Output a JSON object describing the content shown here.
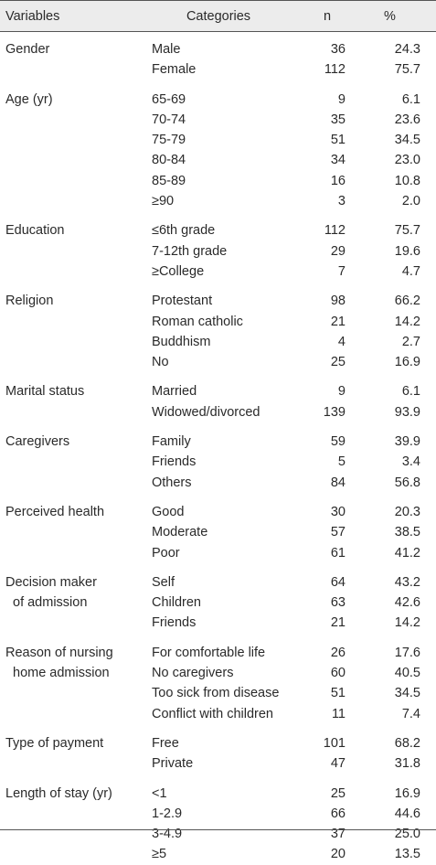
{
  "header": {
    "variables": "Variables",
    "categories": "Categories",
    "n": "n",
    "pct": "%"
  },
  "groups": [
    {
      "variable": [
        "Gender"
      ],
      "rows": [
        {
          "cat": "Male",
          "n": "36",
          "pct": "24.3"
        },
        {
          "cat": "Female",
          "n": "112",
          "pct": "75.7"
        }
      ]
    },
    {
      "variable": [
        "Age (yr)"
      ],
      "rows": [
        {
          "cat": "65-69",
          "n": "9",
          "pct": "6.1"
        },
        {
          "cat": "70-74",
          "n": "35",
          "pct": "23.6"
        },
        {
          "cat": "75-79",
          "n": "51",
          "pct": "34.5"
        },
        {
          "cat": "80-84",
          "n": "34",
          "pct": "23.0"
        },
        {
          "cat": "85-89",
          "n": "16",
          "pct": "10.8"
        },
        {
          "cat": "≥90",
          "n": "3",
          "pct": "2.0"
        }
      ]
    },
    {
      "variable": [
        "Education"
      ],
      "rows": [
        {
          "cat": "≤6th grade",
          "n": "112",
          "pct": "75.7"
        },
        {
          "cat": "7-12th grade",
          "n": "29",
          "pct": "19.6"
        },
        {
          "cat": "≥College",
          "n": "7",
          "pct": "4.7"
        }
      ]
    },
    {
      "variable": [
        "Religion"
      ],
      "rows": [
        {
          "cat": "Protestant",
          "n": "98",
          "pct": "66.2"
        },
        {
          "cat": "Roman catholic",
          "n": "21",
          "pct": "14.2"
        },
        {
          "cat": "Buddhism",
          "n": "4",
          "pct": "2.7"
        },
        {
          "cat": "No",
          "n": "25",
          "pct": "16.9"
        }
      ]
    },
    {
      "variable": [
        "Marital status"
      ],
      "rows": [
        {
          "cat": "Married",
          "n": "9",
          "pct": "6.1"
        },
        {
          "cat": "Widowed/divorced",
          "n": "139",
          "pct": "93.9"
        }
      ]
    },
    {
      "variable": [
        "Caregivers"
      ],
      "rows": [
        {
          "cat": "Family",
          "n": "59",
          "pct": "39.9"
        },
        {
          "cat": "Friends",
          "n": "5",
          "pct": "3.4"
        },
        {
          "cat": "Others",
          "n": "84",
          "pct": "56.8"
        }
      ]
    },
    {
      "variable": [
        "Perceived health"
      ],
      "rows": [
        {
          "cat": "Good",
          "n": "30",
          "pct": "20.3"
        },
        {
          "cat": "Moderate",
          "n": "57",
          "pct": "38.5"
        },
        {
          "cat": "Poor",
          "n": "61",
          "pct": "41.2"
        }
      ]
    },
    {
      "variable": [
        "Decision maker",
        "of admission"
      ],
      "rows": [
        {
          "cat": "Self",
          "n": "64",
          "pct": "43.2"
        },
        {
          "cat": "Children",
          "n": "63",
          "pct": "42.6"
        },
        {
          "cat": "Friends",
          "n": "21",
          "pct": "14.2"
        }
      ]
    },
    {
      "variable": [
        "Reason of nursing",
        "home admission"
      ],
      "rows": [
        {
          "cat": "For comfortable life",
          "n": "26",
          "pct": "17.6"
        },
        {
          "cat": "No caregivers",
          "n": "60",
          "pct": "40.5"
        },
        {
          "cat": "Too sick from disease",
          "n": "51",
          "pct": "34.5"
        },
        {
          "cat": "Conflict with children",
          "n": "11",
          "pct": "7.4"
        }
      ]
    },
    {
      "variable": [
        "Type of payment"
      ],
      "rows": [
        {
          "cat": "Free",
          "n": "101",
          "pct": "68.2"
        },
        {
          "cat": "Private",
          "n": "47",
          "pct": "31.8"
        }
      ]
    },
    {
      "variable": [
        "Length of stay (yr)"
      ],
      "rows": [
        {
          "cat": "<1",
          "n": "25",
          "pct": "16.9"
        },
        {
          "cat": "1-2.9",
          "n": "66",
          "pct": "44.6"
        },
        {
          "cat": "3-4.9",
          "n": "37",
          "pct": "25.0"
        },
        {
          "cat": "≥5",
          "n": "20",
          "pct": "13.5"
        }
      ]
    }
  ]
}
